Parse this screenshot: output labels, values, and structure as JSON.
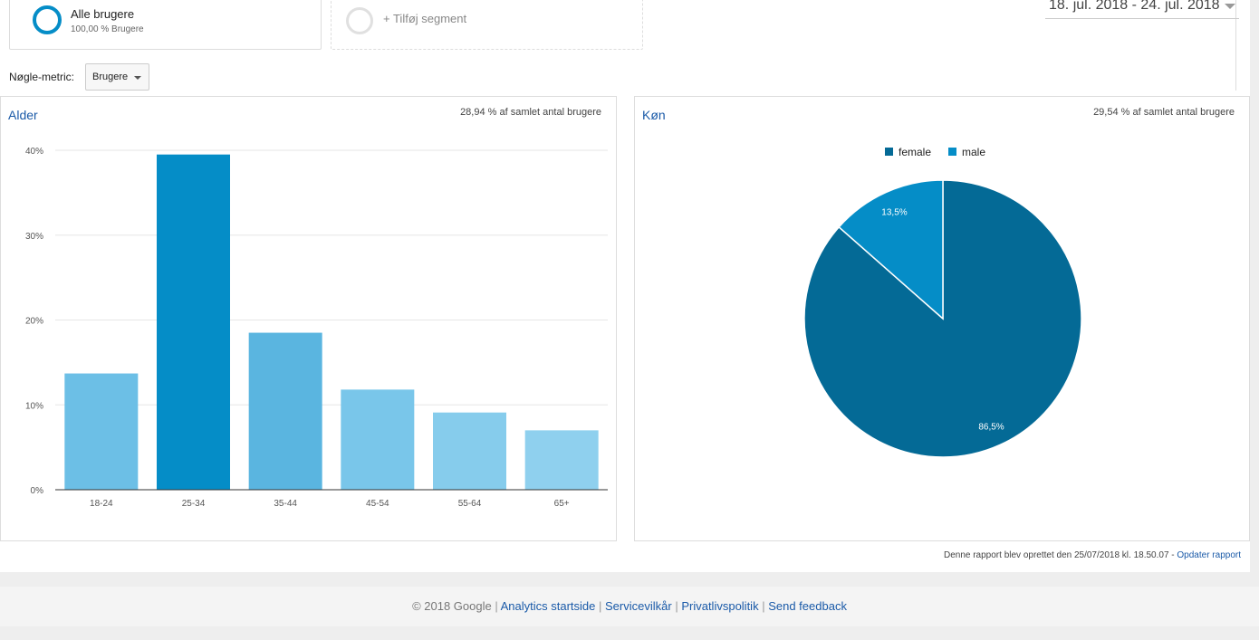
{
  "segments": {
    "all_users": {
      "title": "Alle brugere",
      "subtitle": "100,00 % Brugere"
    },
    "add_segment_label": "+ Tilføj segment"
  },
  "date_range": "18. jul. 2018 - 24. jul. 2018",
  "metric": {
    "label": "Nøgle-metric:",
    "selected": "Brugere"
  },
  "age_panel": {
    "title": "Alder",
    "share": "28,94 % af samlet antal brugere"
  },
  "gender_panel": {
    "title": "Køn",
    "share": "29,54 % af samlet antal brugere"
  },
  "report_note": {
    "text": "Denne rapport blev oprettet den 25/07/2018 kl. 18.50.07 - ",
    "link": "Opdater rapport"
  },
  "footer": {
    "copyright": "© 2018 Google",
    "links": [
      "Analytics startside",
      "Servicevilkår",
      "Privatlivspolitik",
      "Send feedback"
    ]
  },
  "colors": {
    "accent": "#058dc7",
    "link": "#1a5aa8",
    "female": "#046a96",
    "male": "#058dc7",
    "bars": [
      "#6cbfe6",
      "#058dc7",
      "#5ab5e0",
      "#79c6ea",
      "#86ccec",
      "#8fd0ee"
    ]
  },
  "chart_data": [
    {
      "type": "bar",
      "title": "Alder",
      "categories": [
        "18-24",
        "25-34",
        "35-44",
        "45-54",
        "55-64",
        "65+"
      ],
      "values": [
        13.7,
        39.5,
        18.5,
        11.8,
        9.1,
        7.0
      ],
      "yticks": [
        "0%",
        "10%",
        "20%",
        "30%",
        "40%"
      ],
      "ylim": [
        0,
        40
      ],
      "grid": true
    },
    {
      "type": "pie",
      "title": "Køn",
      "labels": [
        "female",
        "male"
      ],
      "values": [
        86.5,
        13.5
      ],
      "slice_labels": [
        "86,5%",
        "13,5%"
      ],
      "legend": "top"
    }
  ]
}
